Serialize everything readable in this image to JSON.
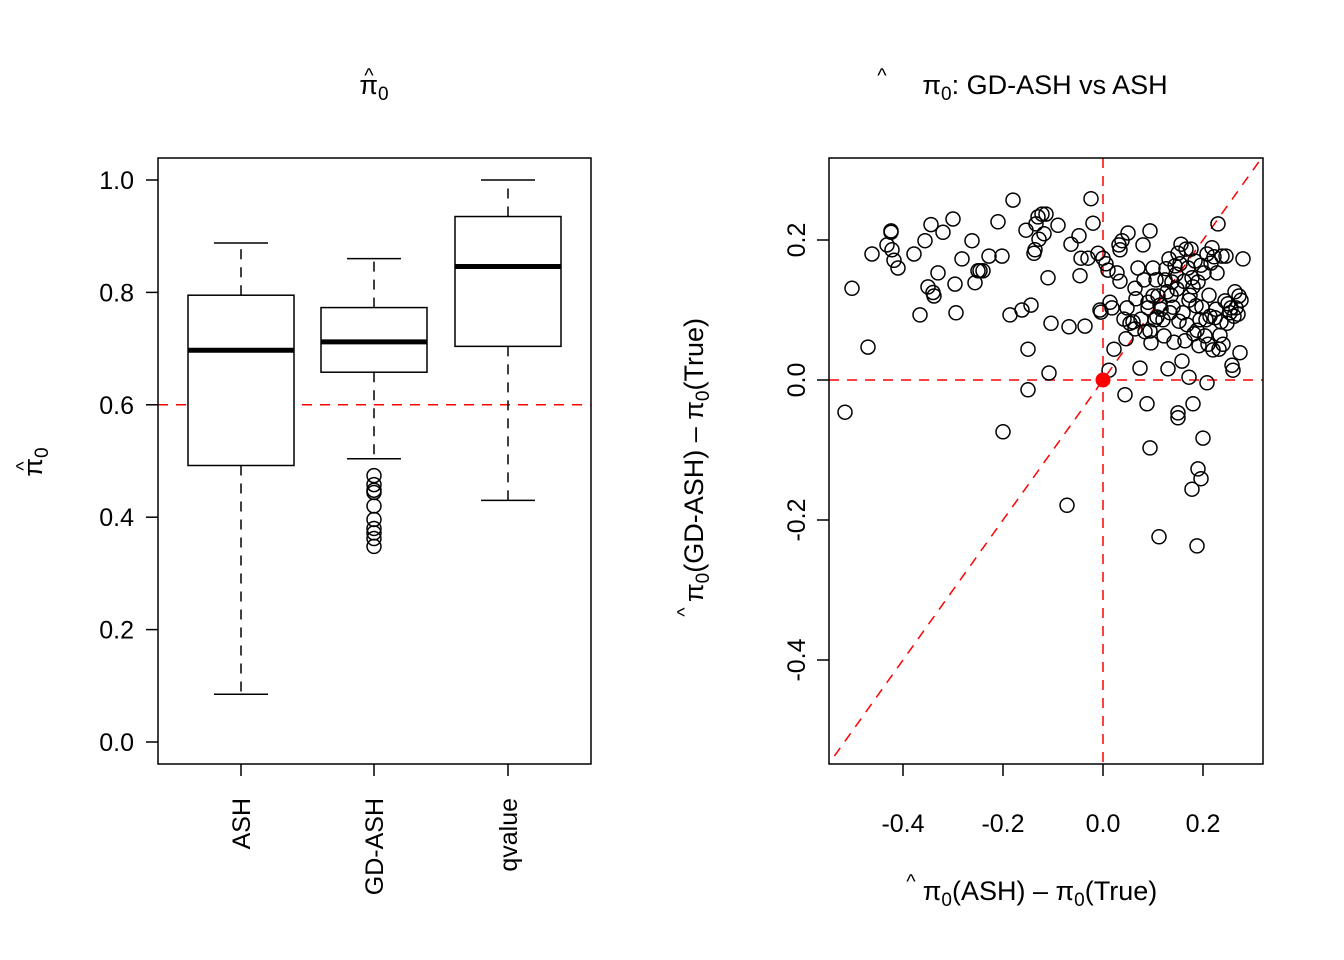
{
  "chart_data": [
    {
      "type": "box",
      "title": "π̂0",
      "title_main": "π",
      "title_sub": "0",
      "xlabel": "",
      "ylabel": "π̂0",
      "ylabel_main": "π",
      "ylabel_sub": "0",
      "ylim": [
        -0.04,
        1.04
      ],
      "yticks": [
        0.0,
        0.2,
        0.4,
        0.6,
        0.8,
        1.0
      ],
      "ytick_labels": [
        "0.0",
        "0.2",
        "0.4",
        "0.6",
        "0.8",
        "1.0"
      ],
      "categories": [
        "ASH",
        "GD-ASH",
        "qvalue"
      ],
      "reference_line": {
        "y": 0.6,
        "color": "#ff0000",
        "style": "dashed"
      },
      "boxes": [
        {
          "name": "ASH",
          "whisker_low": 0.085,
          "q1": 0.492,
          "median": 0.697,
          "q3": 0.795,
          "whisker_high": 0.888,
          "outliers": []
        },
        {
          "name": "GD-ASH",
          "whisker_low": 0.504,
          "q1": 0.658,
          "median": 0.712,
          "q3": 0.773,
          "whisker_high": 0.86,
          "outliers": [
            0.474,
            0.458,
            0.448,
            0.444,
            0.42,
            0.396,
            0.38,
            0.372,
            0.362,
            0.348
          ]
        },
        {
          "name": "qvalue",
          "whisker_low": 0.43,
          "q1": 0.704,
          "median": 0.846,
          "q3": 0.935,
          "whisker_high": 1.0,
          "outliers": []
        }
      ]
    },
    {
      "type": "scatter",
      "title": "π̂0: GD-ASH vs ASH",
      "title_main": "π",
      "title_sub": "0",
      "title_rest": ": GD-ASH vs ASH",
      "xlabel": "π̂0(ASH) − π0(True)",
      "xlabel_parts": [
        "π",
        "0",
        "(ASH) – ",
        "π",
        "0",
        "(True)"
      ],
      "ylabel": "π̂0(GD-ASH) − π0(True)",
      "ylabel_parts": [
        "π",
        "0",
        "(GD-ASH) – ",
        "π",
        "0",
        "(True)"
      ],
      "xlim": [
        -0.55,
        0.32
      ],
      "ylim": [
        -0.55,
        0.32
      ],
      "xticks": [
        -0.4,
        -0.2,
        0.0,
        0.2
      ],
      "xtick_labels": [
        "-0.4",
        "-0.2",
        "0.0",
        "0.2"
      ],
      "yticks": [
        -0.4,
        -0.2,
        0.0,
        0.2
      ],
      "ytick_labels": [
        "-0.4",
        "-0.2",
        "0.0",
        "0.2"
      ],
      "reference_lines": [
        {
          "kind": "h",
          "value": 0.0,
          "color": "#ff0000",
          "style": "dashed"
        },
        {
          "kind": "v",
          "value": 0.0,
          "color": "#ff0000",
          "style": "dashed"
        },
        {
          "kind": "diag",
          "slope": 1,
          "intercept": 0,
          "color": "#ff0000",
          "style": "dashed"
        }
      ],
      "highlight_point": {
        "x": 0.0,
        "y": 0.0,
        "color": "#ff0000"
      },
      "points": [
        [
          -0.516,
          -0.046
        ],
        [
          -0.502,
          0.131
        ],
        [
          -0.47,
          0.047
        ],
        [
          -0.462,
          0.18
        ],
        [
          -0.432,
          0.193
        ],
        [
          -0.424,
          0.211
        ],
        [
          -0.424,
          0.213
        ],
        [
          -0.422,
          0.186
        ],
        [
          -0.418,
          0.171
        ],
        [
          -0.41,
          0.16
        ],
        [
          -0.378,
          0.18
        ],
        [
          -0.366,
          0.093
        ],
        [
          -0.356,
          0.199
        ],
        [
          -0.35,
          0.133
        ],
        [
          -0.344,
          0.222
        ],
        [
          -0.34,
          0.125
        ],
        [
          -0.338,
          0.12
        ],
        [
          -0.33,
          0.153
        ],
        [
          -0.32,
          0.211
        ],
        [
          -0.3,
          0.23
        ],
        [
          -0.296,
          0.137
        ],
        [
          -0.294,
          0.096
        ],
        [
          -0.282,
          0.173
        ],
        [
          -0.262,
          0.199
        ],
        [
          -0.256,
          0.139
        ],
        [
          -0.25,
          0.156
        ],
        [
          -0.246,
          0.156
        ],
        [
          -0.24,
          0.156
        ],
        [
          -0.228,
          0.177
        ],
        [
          -0.21,
          0.226
        ],
        [
          -0.202,
          0.177
        ],
        [
          -0.2,
          -0.074
        ],
        [
          -0.186,
          0.093
        ],
        [
          -0.18,
          0.257
        ],
        [
          -0.162,
          0.1
        ],
        [
          -0.15,
          0.044
        ],
        [
          -0.154,
          0.214
        ],
        [
          -0.15,
          -0.014
        ],
        [
          -0.144,
          0.107
        ],
        [
          -0.138,
          0.181
        ],
        [
          -0.136,
          0.186
        ],
        [
          -0.134,
          0.223
        ],
        [
          -0.13,
          0.233
        ],
        [
          -0.128,
          0.201
        ],
        [
          -0.122,
          0.237
        ],
        [
          -0.118,
          0.209
        ],
        [
          -0.114,
          0.237
        ],
        [
          -0.11,
          0.146
        ],
        [
          -0.108,
          0.01
        ],
        [
          -0.104,
          0.081
        ],
        [
          -0.09,
          0.221
        ],
        [
          -0.072,
          -0.179
        ],
        [
          -0.068,
          0.076
        ],
        [
          -0.064,
          0.194
        ],
        [
          -0.048,
          0.206
        ],
        [
          -0.046,
          0.149
        ],
        [
          -0.044,
          0.174
        ],
        [
          -0.036,
          0.077
        ],
        [
          -0.03,
          0.174
        ],
        [
          -0.024,
          0.259
        ],
        [
          -0.02,
          0.224
        ],
        [
          -0.01,
          0.181
        ],
        [
          -0.006,
          0.1
        ],
        [
          -0.004,
          0.097
        ],
        [
          0.0,
          0.174
        ],
        [
          0.006,
          0.166
        ],
        [
          0.01,
          0.157
        ],
        [
          0.012,
          0.014
        ],
        [
          0.014,
          0.111
        ],
        [
          0.018,
          0.103
        ],
        [
          0.022,
          0.044
        ],
        [
          0.028,
          0.153
        ],
        [
          0.032,
          0.193
        ],
        [
          0.034,
          0.141
        ],
        [
          0.034,
          0.186
        ],
        [
          0.038,
          0.199
        ],
        [
          0.042,
          0.087
        ],
        [
          0.044,
          -0.021
        ],
        [
          0.046,
          0.059
        ],
        [
          0.048,
          0.103
        ],
        [
          0.05,
          0.21
        ],
        [
          0.054,
          0.081
        ],
        [
          0.06,
          0.083
        ],
        [
          0.064,
          0.073
        ],
        [
          0.064,
          0.131
        ],
        [
          0.066,
          0.116
        ],
        [
          0.07,
          0.16
        ],
        [
          0.074,
          0.017
        ],
        [
          0.076,
          0.087
        ],
        [
          0.08,
          0.193
        ],
        [
          0.082,
          0.143
        ],
        [
          0.084,
          0.069
        ],
        [
          0.088,
          -0.034
        ],
        [
          0.09,
          0.111
        ],
        [
          0.09,
          0.103
        ],
        [
          0.094,
          0.07
        ],
        [
          0.094,
          -0.097
        ],
        [
          0.094,
          0.213
        ],
        [
          0.096,
          0.053
        ],
        [
          0.1,
          0.12
        ],
        [
          0.1,
          0.16
        ],
        [
          0.104,
          0.086
        ],
        [
          0.106,
          0.143
        ],
        [
          0.108,
          0.09
        ],
        [
          0.11,
          0.12
        ],
        [
          0.112,
          -0.224
        ],
        [
          0.114,
          0.107
        ],
        [
          0.116,
          0.101
        ],
        [
          0.12,
          0.086
        ],
        [
          0.122,
          0.063
        ],
        [
          0.124,
          0.143
        ],
        [
          0.126,
          0.159
        ],
        [
          0.128,
          0.126
        ],
        [
          0.13,
          0.016
        ],
        [
          0.132,
          0.173
        ],
        [
          0.134,
          0.096
        ],
        [
          0.136,
          0.121
        ],
        [
          0.138,
          0.14
        ],
        [
          0.14,
          0.104
        ],
        [
          0.142,
          0.054
        ],
        [
          0.144,
          0.163
        ],
        [
          0.146,
          0.151
        ],
        [
          0.148,
          0.13
        ],
        [
          0.15,
          0.181
        ],
        [
          0.15,
          -0.054
        ],
        [
          0.15,
          -0.047
        ],
        [
          0.152,
          0.084
        ],
        [
          0.154,
          0.166
        ],
        [
          0.156,
          0.194
        ],
        [
          0.158,
          0.027
        ],
        [
          0.16,
          0.096
        ],
        [
          0.162,
          0.141
        ],
        [
          0.164,
          0.056
        ],
        [
          0.166,
          0.187
        ],
        [
          0.168,
          0.079
        ],
        [
          0.17,
          0.16
        ],
        [
          0.172,
          0.114
        ],
        [
          0.172,
          0.004
        ],
        [
          0.174,
          0.121
        ],
        [
          0.176,
          0.187
        ],
        [
          0.178,
          0.146
        ],
        [
          0.178,
          -0.156
        ],
        [
          0.18,
          0.133
        ],
        [
          0.18,
          -0.034
        ],
        [
          0.182,
          0.066
        ],
        [
          0.184,
          0.17
        ],
        [
          0.186,
          0.106
        ],
        [
          0.188,
          0.071
        ],
        [
          0.188,
          -0.237
        ],
        [
          0.19,
          0.14
        ],
        [
          0.19,
          -0.127
        ],
        [
          0.192,
          0.049
        ],
        [
          0.194,
          0.086
        ],
        [
          0.196,
          0.164
        ],
        [
          0.196,
          -0.141
        ],
        [
          0.198,
          0.104
        ],
        [
          0.2,
          -0.083
        ],
        [
          0.202,
          0.153
        ],
        [
          0.204,
          0.063
        ],
        [
          0.206,
          0.086
        ],
        [
          0.208,
          0.18
        ],
        [
          0.208,
          -0.004
        ],
        [
          0.21,
          0.051
        ],
        [
          0.212,
          0.121
        ],
        [
          0.214,
          0.091
        ],
        [
          0.216,
          0.167
        ],
        [
          0.218,
          0.189
        ],
        [
          0.22,
          0.043
        ],
        [
          0.222,
          0.176
        ],
        [
          0.224,
          0.089
        ],
        [
          0.226,
          0.101
        ],
        [
          0.228,
          0.153
        ],
        [
          0.23,
          0.223
        ],
        [
          0.232,
          0.044
        ],
        [
          0.234,
          0.064
        ],
        [
          0.236,
          0.083
        ],
        [
          0.238,
          0.177
        ],
        [
          0.24,
          0.051
        ],
        [
          0.244,
          0.113
        ],
        [
          0.246,
          0.177
        ],
        [
          0.248,
          0.081
        ],
        [
          0.25,
          0.109
        ],
        [
          0.254,
          0.096
        ],
        [
          0.256,
          0.103
        ],
        [
          0.258,
          0.021
        ],
        [
          0.26,
          0.014
        ],
        [
          0.262,
          0.091
        ],
        [
          0.264,
          0.126
        ],
        [
          0.266,
          0.103
        ],
        [
          0.27,
          0.094
        ],
        [
          0.272,
          0.12
        ],
        [
          0.274,
          0.039
        ],
        [
          0.276,
          0.114
        ],
        [
          0.28,
          0.173
        ]
      ]
    }
  ]
}
